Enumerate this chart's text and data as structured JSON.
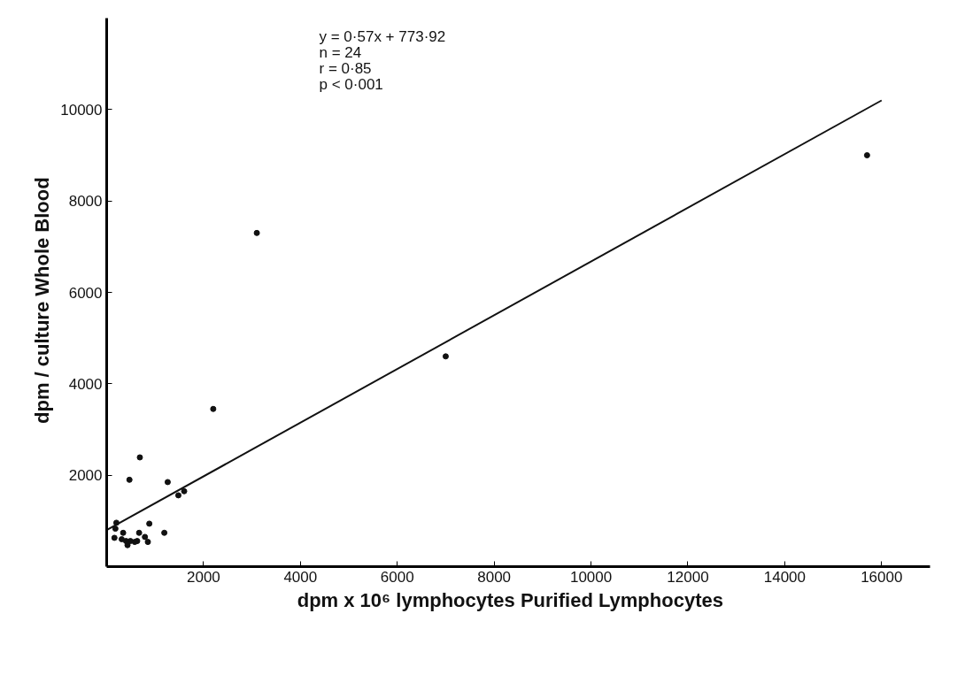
{
  "chart_data": {
    "type": "scatter",
    "xlabel": "dpm x 10⁶ lymphocytes    Purified Lymphocytes",
    "ylabel": "dpm / culture    Whole Blood",
    "annotations": [
      "y = 0·57x + 773·92",
      "n = 24",
      "r = 0·85",
      "p < 0·001"
    ],
    "xlim": [
      0,
      17000
    ],
    "ylim": [
      0,
      12000
    ],
    "xticks": [
      2000,
      4000,
      6000,
      8000,
      10000,
      12000,
      14000,
      16000
    ],
    "yticks": [
      2000,
      4000,
      6000,
      8000,
      10000
    ],
    "grid": false,
    "marker": "circle",
    "series": [
      {
        "color": "#111111",
        "x": [
          15700,
          3100,
          7000,
          2200,
          685,
          470,
          1260,
          1480,
          1600,
          880,
          1190,
          200,
          180,
          160,
          340,
          310,
          430,
          490,
          670,
          630,
          790,
          850,
          580,
          400
        ],
        "values": [
          9000,
          7300,
          4600,
          3450,
          2390,
          1900,
          1850,
          1560,
          1650,
          940,
          740,
          960,
          830,
          630,
          740,
          600,
          470,
          560,
          740,
          560,
          650,
          540,
          540,
          560
        ]
      },
      {
        "type": "line",
        "color": "#111111",
        "x": [
          0,
          16000
        ],
        "values": [
          800,
          10200
        ],
        "line_style": "solid",
        "marker": "none"
      }
    ]
  }
}
